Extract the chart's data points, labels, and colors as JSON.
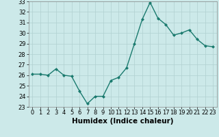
{
  "x": [
    0,
    1,
    2,
    3,
    4,
    5,
    6,
    7,
    8,
    9,
    10,
    11,
    12,
    13,
    14,
    15,
    16,
    17,
    18,
    19,
    20,
    21,
    22,
    23
  ],
  "y": [
    26.1,
    26.1,
    26.0,
    26.6,
    26.0,
    25.9,
    24.5,
    23.3,
    24.0,
    24.0,
    25.5,
    25.8,
    26.7,
    29.0,
    31.3,
    32.9,
    31.4,
    30.8,
    29.8,
    30.0,
    30.3,
    29.4,
    28.8,
    28.7
  ],
  "line_color": "#1a7a6e",
  "marker": "D",
  "markersize": 2,
  "linewidth": 1.0,
  "xlabel": "Humidex (Indice chaleur)",
  "xlim": [
    -0.5,
    23.5
  ],
  "ylim": [
    23,
    33
  ],
  "yticks": [
    23,
    24,
    25,
    26,
    27,
    28,
    29,
    30,
    31,
    32,
    33
  ],
  "xticks": [
    0,
    1,
    2,
    3,
    4,
    5,
    6,
    7,
    8,
    9,
    10,
    11,
    12,
    13,
    14,
    15,
    16,
    17,
    18,
    19,
    20,
    21,
    22,
    23
  ],
  "bg_color": "#cce9e9",
  "grid_color": "#b0d0d0",
  "xlabel_fontsize": 7.5,
  "tick_fontsize": 6.0
}
